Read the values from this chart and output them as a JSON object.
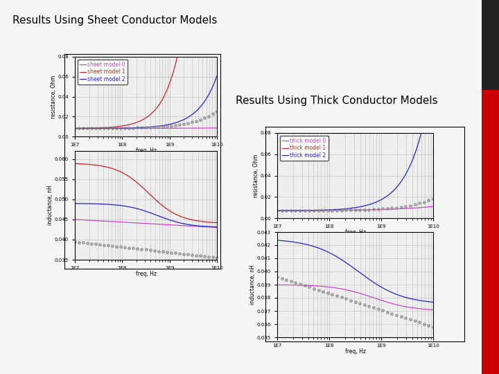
{
  "title_left": "Results Using Sheet Conductor Models",
  "title_right": "Results Using Thick Conductor Models",
  "background_color": "#f5f5f5",
  "title_fontsize": 11,
  "freq_min": 10000000.0,
  "freq_max": 10000000000.0,
  "color_model0": "#cc44cc",
  "color_model1": "#cc2222",
  "color_model2": "#2222cc",
  "color_dots": "#888888",
  "legend_fontsize": 5.5,
  "axis_label_fontsize": 5.5,
  "tick_fontsize": 5,
  "xlabel": "freq, Hz",
  "ylabel_res": "resistance, Ohm",
  "ylabel_ind": "inductance, nH",
  "sheet_res_yticks": [
    0.0,
    0.02,
    0.04,
    0.06,
    0.08
  ],
  "sheet_ind_yticks": [
    0.035,
    0.04,
    0.045,
    0.05,
    0.055,
    0.06
  ],
  "thick_res_yticks": [
    0.0,
    0.02,
    0.04,
    0.06,
    0.08
  ],
  "thick_ind_yticks": [
    0.035,
    0.036,
    0.037,
    0.038,
    0.039,
    0.04,
    0.041,
    0.042,
    0.043
  ],
  "right_bar_color": "#cc0000",
  "right_dark_color": "#222222"
}
